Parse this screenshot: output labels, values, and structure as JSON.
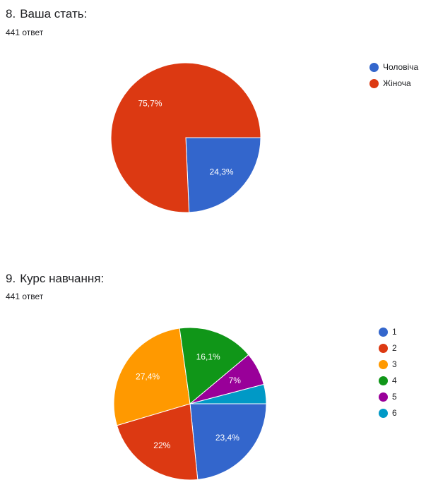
{
  "chart_data": [
    {
      "type": "pie",
      "number": "8.",
      "title": "Ваша стать:",
      "responses": "441 ответ",
      "categories": [
        "Чоловіча",
        "Жіноча"
      ],
      "values": [
        24.3,
        75.7
      ],
      "labels": [
        "24,3%",
        "75,7%"
      ],
      "colors": [
        "#3366cc",
        "#dc3912"
      ],
      "legend_position": "right"
    },
    {
      "type": "pie",
      "number": "9.",
      "title": "Курс навчання:",
      "responses": "441 ответ",
      "categories": [
        "1",
        "2",
        "3",
        "4",
        "5",
        "6"
      ],
      "values": [
        23.4,
        22,
        27.4,
        16.1,
        7,
        4.1
      ],
      "labels": [
        "23,4%",
        "22%",
        "27,4%",
        "16,1%",
        "7%",
        ""
      ],
      "colors": [
        "#3366cc",
        "#dc3912",
        "#ff9900",
        "#109618",
        "#990099",
        "#0099c6"
      ],
      "legend_position": "right"
    }
  ]
}
